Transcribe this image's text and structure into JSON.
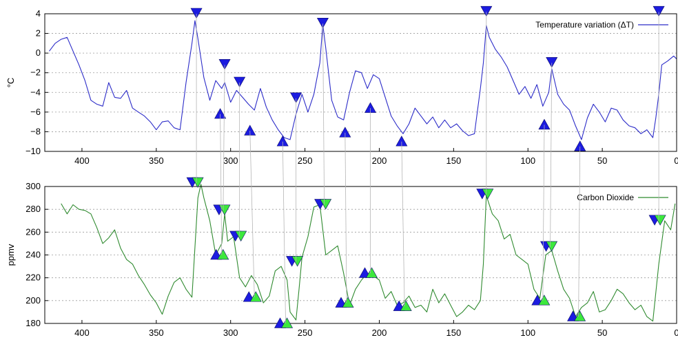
{
  "chart_data": [
    {
      "type": "line",
      "ylabel": "°C",
      "xlim": [
        425,
        0
      ],
      "ylim": [
        -10,
        4
      ],
      "xticks": [
        400,
        350,
        300,
        250,
        200,
        150,
        100,
        50,
        0
      ],
      "yticks": [
        -10,
        -8,
        -6,
        -4,
        -2,
        0,
        2,
        4
      ],
      "grid": true,
      "legend_position": "top-right",
      "series": [
        {
          "name": "Temperature variation (ΔT)",
          "color": "#2b2bc8",
          "x": [
            422,
            418,
            414,
            410,
            406,
            402,
            398,
            394,
            390,
            386,
            382,
            378,
            374,
            370,
            366,
            362,
            358,
            354,
            350,
            346,
            342,
            338,
            334,
            330,
            326,
            324,
            322,
            318,
            314,
            310,
            306,
            304,
            300,
            296,
            292,
            288,
            284,
            280,
            276,
            272,
            268,
            264,
            260,
            256,
            252,
            248,
            244,
            240,
            238,
            236,
            232,
            228,
            224,
            220,
            216,
            212,
            208,
            204,
            200,
            196,
            192,
            188,
            184,
            180,
            176,
            172,
            168,
            164,
            160,
            156,
            152,
            148,
            144,
            140,
            136,
            132,
            130,
            128,
            126,
            122,
            118,
            114,
            110,
            106,
            102,
            98,
            94,
            90,
            86,
            84,
            80,
            76,
            72,
            68,
            64,
            60,
            56,
            52,
            48,
            44,
            40,
            36,
            32,
            28,
            24,
            20,
            16,
            14,
            12,
            10,
            6,
            2,
            0
          ],
          "y": [
            0.2,
            1.0,
            1.4,
            1.6,
            0.2,
            -1.2,
            -2.8,
            -4.8,
            -5.2,
            -5.4,
            -3.0,
            -4.5,
            -4.6,
            -3.8,
            -5.6,
            -6.0,
            -6.4,
            -7.0,
            -7.8,
            -7.0,
            -6.9,
            -7.6,
            -7.8,
            -3.0,
            1.0,
            3.3,
            1.5,
            -2.5,
            -4.8,
            -2.8,
            -3.6,
            -3.0,
            -5.0,
            -3.8,
            -4.5,
            -5.2,
            -5.8,
            -3.6,
            -5.5,
            -6.8,
            -7.8,
            -8.6,
            -8.8,
            -6.2,
            -4.2,
            -6.0,
            -4.2,
            -1.0,
            2.9,
            0.5,
            -4.8,
            -6.5,
            -6.8,
            -4.0,
            -1.8,
            -2.0,
            -3.6,
            -2.2,
            -2.6,
            -4.5,
            -6.4,
            -7.4,
            -8.2,
            -7.2,
            -5.6,
            -6.4,
            -7.2,
            -6.5,
            -7.6,
            -6.8,
            -7.6,
            -7.2,
            -7.9,
            -8.4,
            -8.2,
            -3.6,
            -1.0,
            2.8,
            1.6,
            0.4,
            -0.4,
            -1.4,
            -2.8,
            -4.2,
            -3.4,
            -4.6,
            -3.2,
            -5.4,
            -4.0,
            -1.6,
            -4.2,
            -5.2,
            -5.8,
            -7.4,
            -8.8,
            -6.6,
            -5.2,
            -6.0,
            -7.0,
            -5.6,
            -5.8,
            -6.8,
            -7.4,
            -7.6,
            -8.2,
            -7.8,
            -8.6,
            -6.6,
            -4.2,
            -1.2,
            -0.8,
            -0.3,
            -0.6
          ]
        }
      ],
      "markers": {
        "peaks": [
          {
            "x": 323,
            "y": 4.0
          },
          {
            "x": 304,
            "y": -1.2
          },
          {
            "x": 294,
            "y": -3.0
          },
          {
            "x": 256,
            "y": -4.6
          },
          {
            "x": 238,
            "y": 3.0
          },
          {
            "x": 128,
            "y": 4.2
          },
          {
            "x": 84,
            "y": -1.0
          },
          {
            "x": 12,
            "y": 4.2
          }
        ],
        "troughs": [
          {
            "x": 307,
            "y": -6.2
          },
          {
            "x": 287,
            "y": -7.9
          },
          {
            "x": 265,
            "y": -9.0
          },
          {
            "x": 223,
            "y": -8.1
          },
          {
            "x": 206,
            "y": -5.6
          },
          {
            "x": 185,
            "y": -9.0
          },
          {
            "x": 89,
            "y": -7.3
          },
          {
            "x": 65,
            "y": -9.5
          }
        ]
      }
    },
    {
      "type": "line",
      "ylabel": "ppmv",
      "xlim": [
        425,
        0
      ],
      "ylim": [
        180,
        300
      ],
      "xticks": [
        400,
        350,
        300,
        250,
        200,
        150,
        100,
        50,
        0
      ],
      "yticks": [
        180,
        200,
        220,
        240,
        260,
        280,
        300
      ],
      "grid": true,
      "legend_position": "top-right",
      "series": [
        {
          "name": "Carbon Dioxide",
          "color": "#2f8a2f",
          "x": [
            414,
            410,
            406,
            402,
            398,
            394,
            390,
            386,
            382,
            378,
            374,
            370,
            366,
            362,
            358,
            354,
            350,
            346,
            342,
            338,
            334,
            330,
            326,
            322,
            320,
            318,
            314,
            310,
            306,
            304,
            302,
            298,
            294,
            290,
            286,
            282,
            278,
            274,
            270,
            266,
            262,
            260,
            256,
            254,
            252,
            248,
            244,
            240,
            236,
            232,
            228,
            224,
            220,
            216,
            212,
            208,
            204,
            200,
            196,
            192,
            188,
            184,
            180,
            176,
            172,
            168,
            164,
            160,
            156,
            152,
            148,
            144,
            140,
            136,
            132,
            130,
            128,
            124,
            120,
            116,
            112,
            108,
            104,
            100,
            96,
            92,
            88,
            84,
            80,
            76,
            72,
            68,
            64,
            60,
            56,
            52,
            48,
            44,
            40,
            36,
            32,
            28,
            24,
            20,
            16,
            12,
            8,
            4,
            1
          ],
          "y": [
            285,
            276,
            284,
            280,
            279,
            276,
            264,
            250,
            255,
            262,
            246,
            236,
            232,
            222,
            214,
            205,
            198,
            188,
            204,
            216,
            220,
            210,
            203,
            290,
            302,
            290,
            270,
            240,
            250,
            276,
            252,
            256,
            220,
            212,
            222,
            214,
            198,
            204,
            226,
            230,
            218,
            190,
            183,
            210,
            238,
            256,
            282,
            284,
            240,
            244,
            248,
            224,
            196,
            210,
            218,
            224,
            222,
            218,
            202,
            208,
            196,
            198,
            204,
            194,
            196,
            190,
            210,
            198,
            206,
            196,
            186,
            190,
            196,
            192,
            200,
            232,
            292,
            276,
            270,
            254,
            258,
            240,
            236,
            232,
            210,
            202,
            240,
            244,
            226,
            210,
            202,
            186,
            194,
            198,
            208,
            190,
            192,
            200,
            210,
            206,
            198,
            192,
            196,
            186,
            182,
            232,
            270,
            262,
            285
          ]
        }
      ],
      "markers": {
        "peaks": [
          {
            "x": 323,
            "y": 303
          },
          {
            "x": 305,
            "y": 279
          },
          {
            "x": 294,
            "y": 256
          },
          {
            "x": 256,
            "y": 234
          },
          {
            "x": 237,
            "y": 284
          },
          {
            "x": 128,
            "y": 293
          },
          {
            "x": 85,
            "y": 247
          },
          {
            "x": 12,
            "y": 270
          }
        ],
        "troughs": [
          {
            "x": 306,
            "y": 240
          },
          {
            "x": 284,
            "y": 203
          },
          {
            "x": 263,
            "y": 180
          },
          {
            "x": 222,
            "y": 198
          },
          {
            "x": 206,
            "y": 224
          },
          {
            "x": 183,
            "y": 195
          },
          {
            "x": 90,
            "y": 200
          },
          {
            "x": 66,
            "y": 186
          }
        ]
      }
    }
  ],
  "styles": {
    "peak_marker_temp": "#1c1ce0",
    "trough_marker_temp": "#1c1ce0",
    "peak_marker_co2": "#3ce83c",
    "trough_marker_co2": "#3ce83c",
    "marker_shadow": "#1c1ce0"
  }
}
